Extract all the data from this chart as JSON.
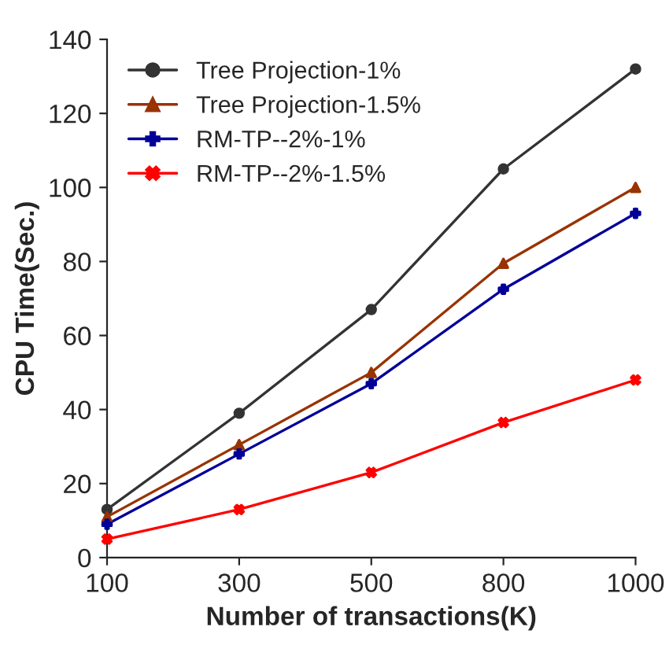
{
  "chart_data": {
    "type": "line",
    "xlabel": "Number of transactions(K)",
    "ylabel": "CPU Time(Sec.)",
    "categories": [
      "100",
      "300",
      "500",
      "800",
      "1000"
    ],
    "ylim": [
      0,
      140
    ],
    "yticks": [
      0,
      20,
      40,
      60,
      80,
      100,
      120,
      140
    ],
    "grid": false,
    "legend": "top left",
    "series": [
      {
        "name": "Tree Projection-1%",
        "color": "#333333",
        "marker": "circle",
        "values": [
          13,
          39,
          67,
          105,
          132
        ]
      },
      {
        "name": "Tree Projection-1.5%",
        "color": "#993300",
        "marker": "triangle",
        "values": [
          11,
          30.5,
          50,
          79.5,
          100
        ]
      },
      {
        "name": "RM-TP--2%-1%",
        "color": "#000099",
        "marker": "plus",
        "values": [
          9,
          28,
          47,
          72.5,
          93
        ]
      },
      {
        "name": "RM-TP--2%-1.5%",
        "color": "#ff0000",
        "marker": "cross",
        "values": [
          5,
          13,
          23,
          36.5,
          48
        ]
      }
    ]
  }
}
